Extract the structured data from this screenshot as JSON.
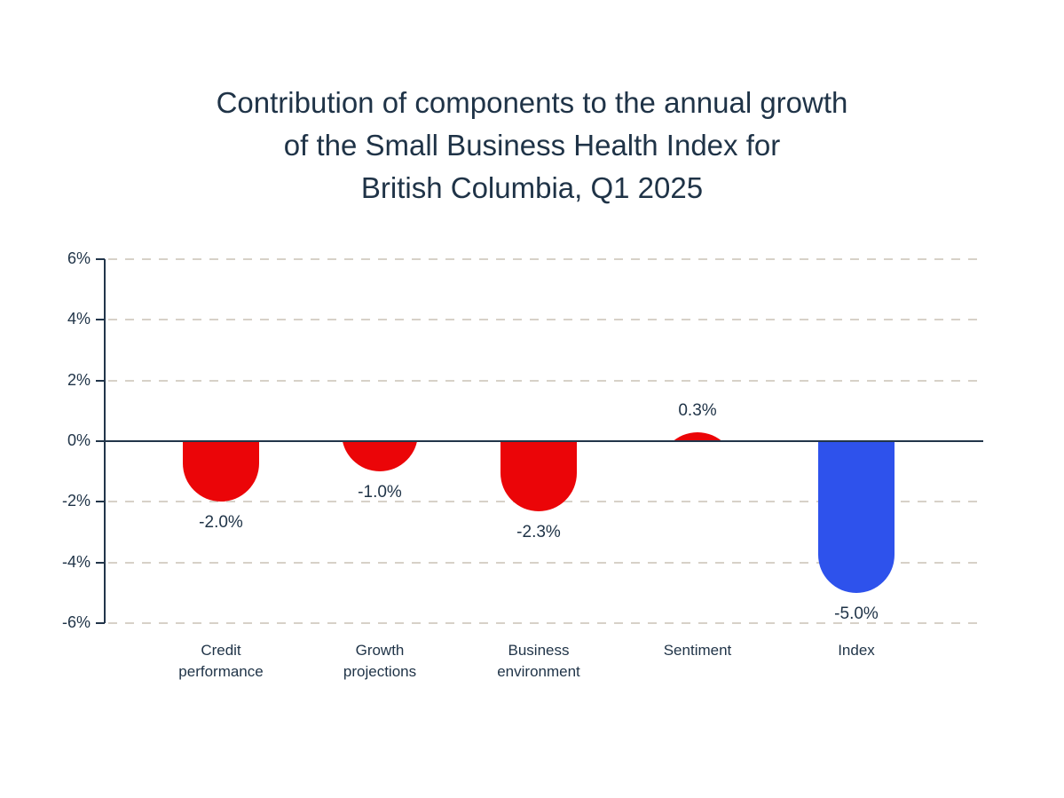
{
  "title": {
    "lines": [
      "Contribution of components to the annual growth",
      "of the Small Business Health Index for",
      "British Columbia, Q1 2025"
    ]
  },
  "chart_data": {
    "type": "bar",
    "title": "Contribution of components to the annual growth of the Small Business Health Index for British Columbia, Q1 2025",
    "categories": [
      "Credit performance",
      "Growth projections",
      "Business environment",
      "Sentiment",
      "Index"
    ],
    "values": [
      -2.0,
      -1.0,
      -2.3,
      0.3,
      -5.0
    ],
    "value_labels": [
      "-2.0%",
      "-1.0%",
      "-2.3%",
      "0.3%",
      "-5.0%"
    ],
    "bar_colors": [
      "#eb0508",
      "#eb0508",
      "#eb0508",
      "#eb0508",
      "#2e52ec"
    ],
    "xlabel": "",
    "ylabel": "",
    "ylim": [
      -6,
      6
    ],
    "y_ticks": [
      6,
      4,
      2,
      0,
      -2,
      -4,
      -6
    ],
    "y_tick_labels": [
      "6%",
      "4%",
      "2%",
      "0%",
      "-2%",
      "-4%",
      "-6%"
    ],
    "grid": "horizontal-dashed",
    "legend": "none",
    "colors": {
      "component_bar": "#eb0508",
      "index_bar": "#2e52ec",
      "text": "#1f3347",
      "axis": "#22354a",
      "gridline": "#d7d1c8",
      "background": "#ffffff"
    }
  }
}
